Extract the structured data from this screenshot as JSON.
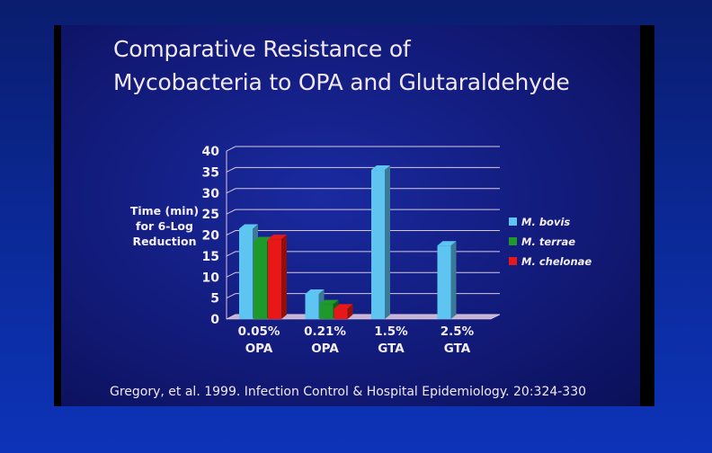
{
  "title_lines": [
    "Comparative Resistance of",
    "Mycobacteria to OPA and Glutaraldehyde"
  ],
  "citation": "Gregory, et al. 1999. Infection Control & Hospital Epidemiology. 20:324-330",
  "chart_data": {
    "type": "bar",
    "title": "Comparative Resistance of Mycobacteria to OPA and Glutaraldehyde",
    "ylabel_lines": [
      "Time (min)",
      "for 6-Log",
      "Reduction"
    ],
    "categories": [
      [
        "0.05%",
        "OPA"
      ],
      [
        "0.21%",
        "OPA"
      ],
      [
        "1.5%",
        "GTA"
      ],
      [
        "2.5%",
        "GTA"
      ]
    ],
    "yticks": [
      "0",
      "5",
      "10",
      "15",
      "20",
      "25",
      "30",
      "35",
      "40"
    ],
    "ylim": [
      0,
      40
    ],
    "grid": true,
    "legend_position": "right",
    "series": [
      {
        "name": "M. bovis",
        "color": "#5ec4f2",
        "values": [
          21.5,
          6,
          35.5,
          17.5
        ]
      },
      {
        "name": "M. terrae",
        "color": "#1f9a2a",
        "values": [
          18.5,
          3.5,
          null,
          null
        ]
      },
      {
        "name": "M. chelonae",
        "color": "#e81818",
        "values": [
          19,
          2.5,
          null,
          null
        ]
      }
    ]
  }
}
